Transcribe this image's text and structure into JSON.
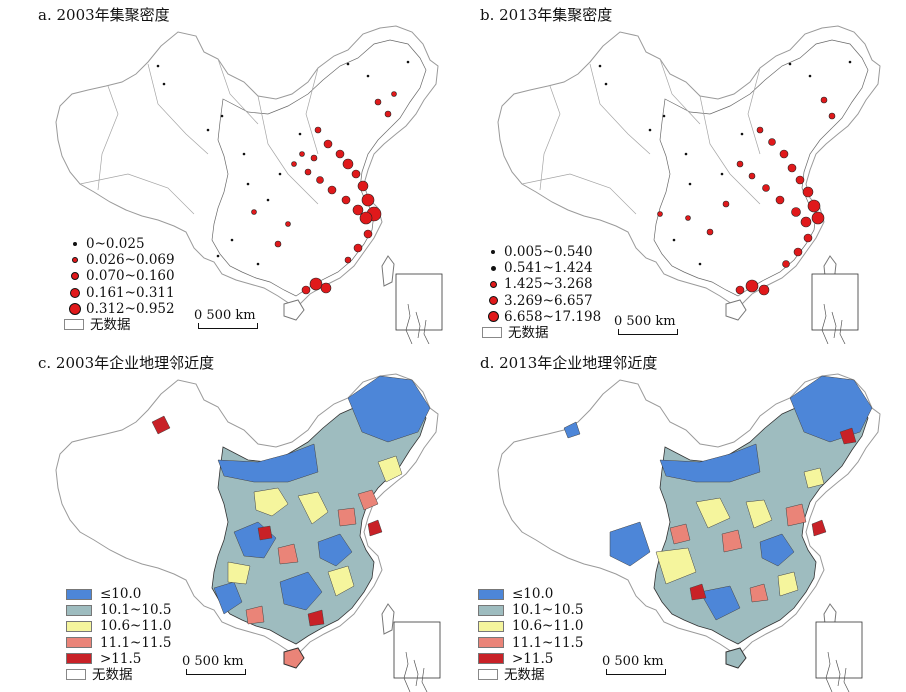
{
  "panels": {
    "a": {
      "title": "a. 2003年集聚密度",
      "legend": [
        "0~0.025",
        "0.026~0.069",
        "0.070~0.160",
        "0.161~0.311",
        "0.312~0.952"
      ],
      "no_data": "无数据",
      "scale": "0 500 km"
    },
    "b": {
      "title": "b. 2013年集聚密度",
      "legend": [
        "0.005~0.540",
        "0.541~1.424",
        "1.425~3.268",
        "3.269~6.657",
        "6.658~17.198"
      ],
      "no_data": "无数据",
      "scale": "0 500 km"
    },
    "c": {
      "title": "c. 2003年企业地理邻近度",
      "legend": [
        "≤10.0",
        "10.1~10.5",
        "10.6~11.0",
        "11.1~11.5",
        ">11.5"
      ],
      "no_data": "无数据",
      "scale": "0 500 km"
    },
    "d": {
      "title": "d. 2013年企业地理邻近度",
      "legend": [
        "≤10.0",
        "10.1~10.5",
        "10.6~11.0",
        "11.1~11.5",
        ">11.5"
      ],
      "no_data": "无数据",
      "scale": "0 500 km"
    }
  },
  "colors": {
    "dot_fill": "#e0191b",
    "class_colors": [
      "#4d86d8",
      "#9ebcbf",
      "#f5f59d",
      "#ea8478",
      "#c82127"
    ],
    "no_data": "#ffffff",
    "boundary": "#9a9a9a"
  },
  "icons": [
    "graduated-circle-icon",
    "legend-swatch-icon",
    "north-arrow-free",
    "inset-map-south-china-sea"
  ]
}
